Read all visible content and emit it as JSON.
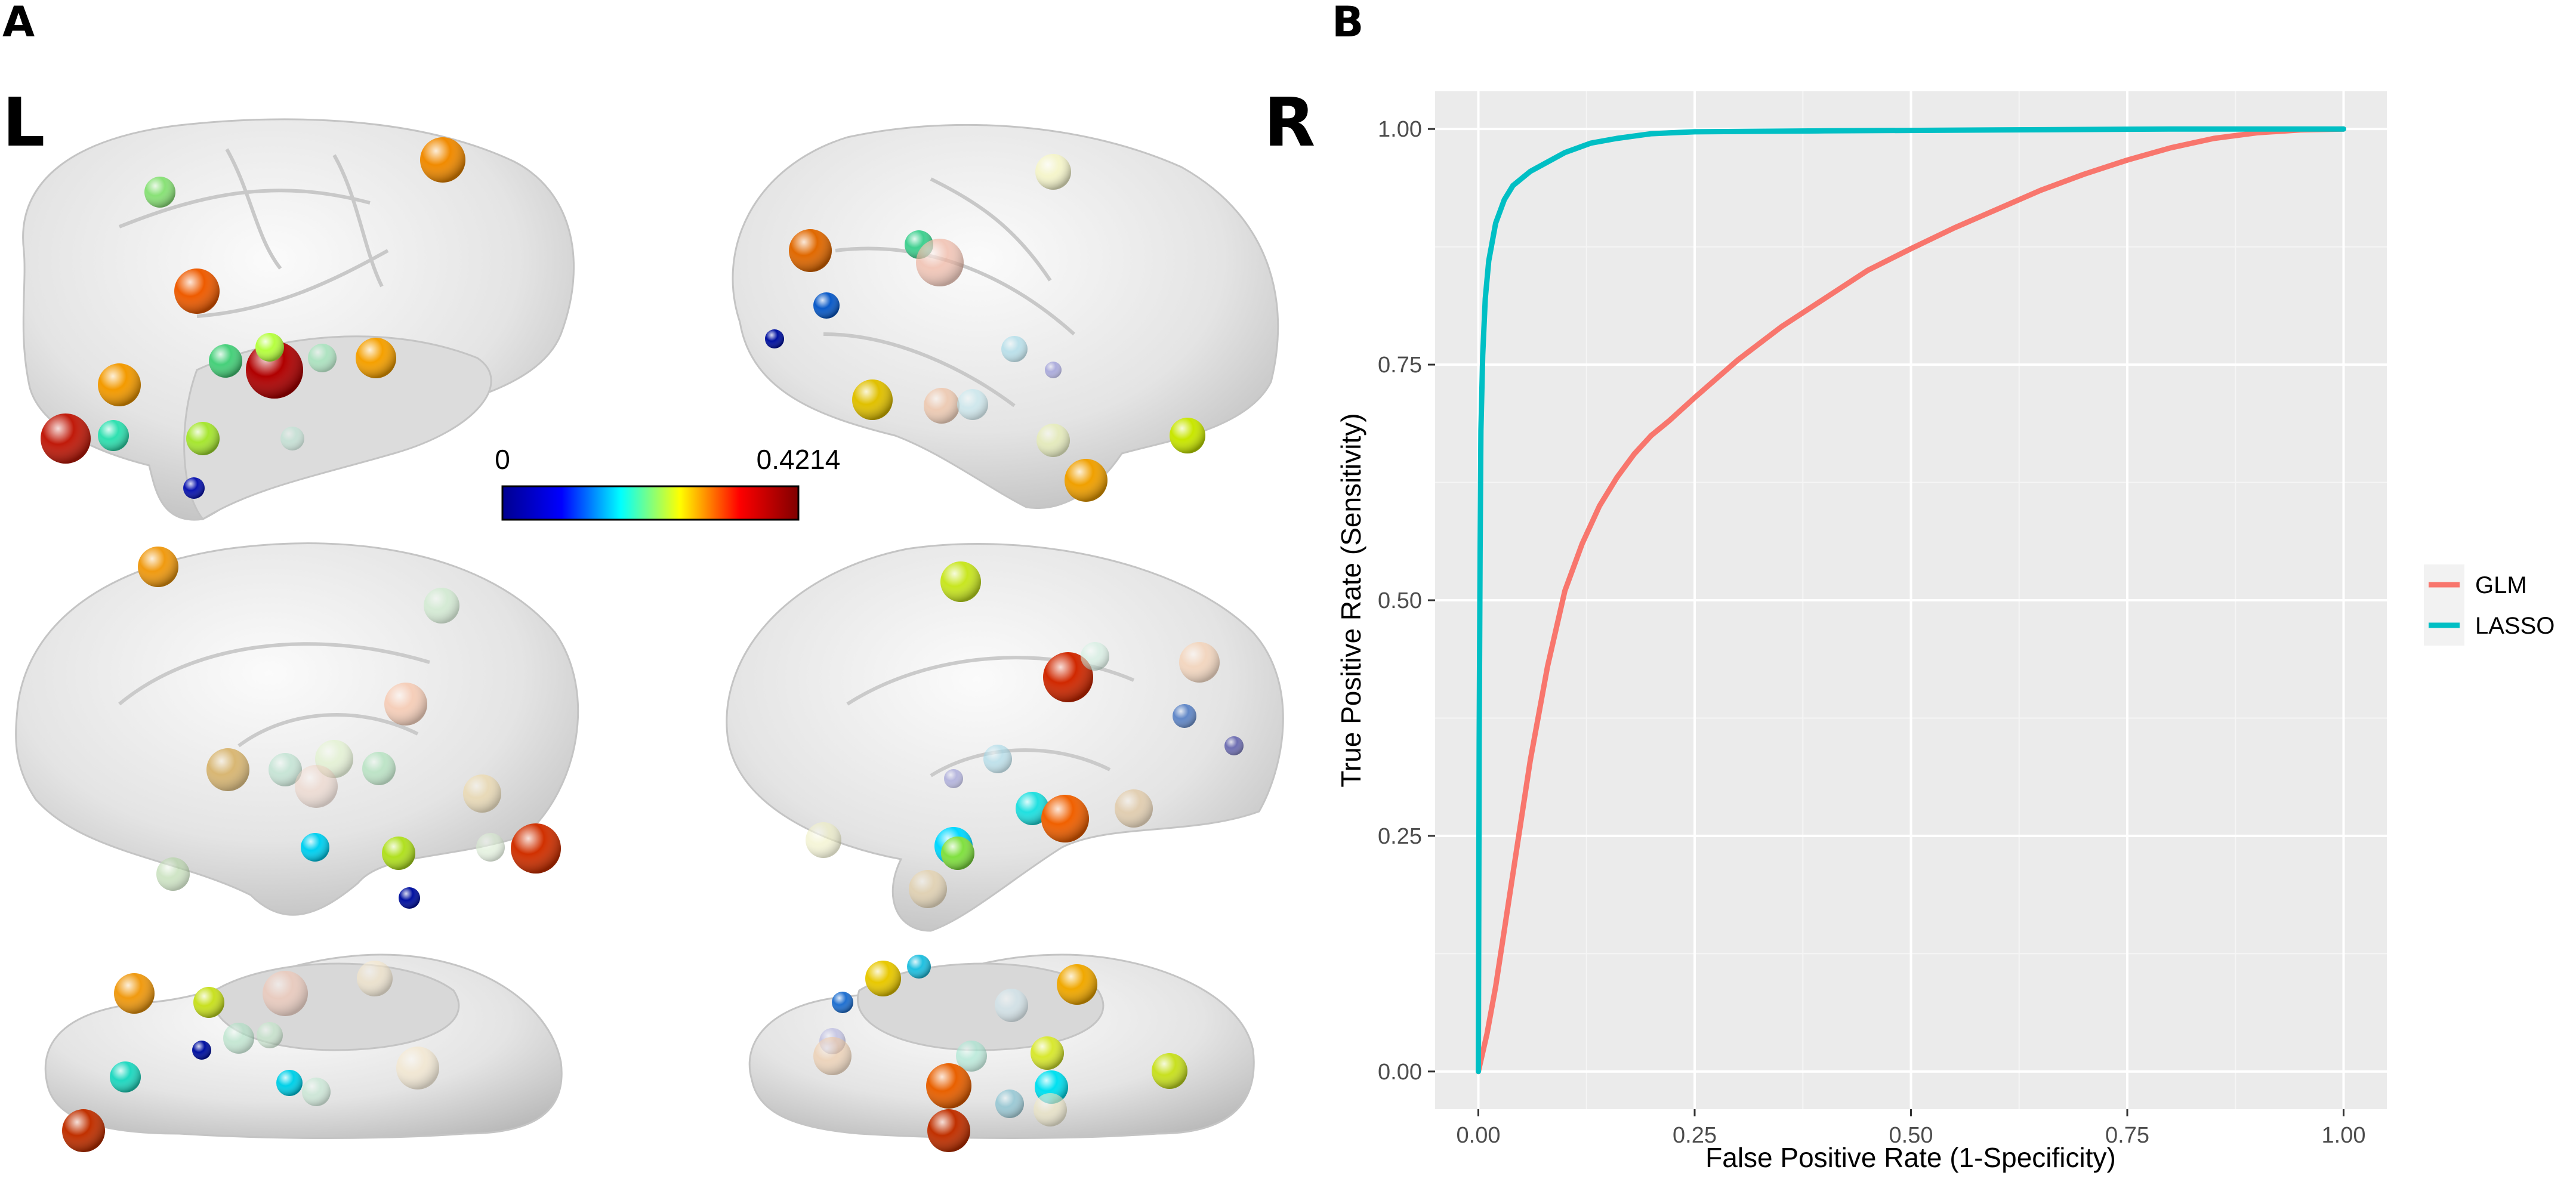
{
  "panels": {
    "a_label": "A",
    "b_label": "B"
  },
  "brain": {
    "left_label": "L",
    "right_label": "R",
    "colorbar": {
      "min_label": "0",
      "max_label": "0.4214",
      "colormap": "jet",
      "stops": [
        "#00008f",
        "#0000ff",
        "#00ffff",
        "#ffff00",
        "#ff0000",
        "#800000"
      ]
    },
    "surface_color": "#e3e3e3"
  },
  "chart_data": {
    "type": "line",
    "title": "",
    "xlabel": "False Positive Rate (1-Specificity)",
    "ylabel": "True Positive Rate (Sensitivity)",
    "xlim": [
      -0.05,
      1.05
    ],
    "ylim": [
      -0.04,
      1.04
    ],
    "x_ticks": [
      "0.00",
      "0.25",
      "0.50",
      "0.75",
      "1.00"
    ],
    "y_ticks": [
      "0.00",
      "0.25",
      "0.50",
      "0.75",
      "1.00"
    ],
    "grid": true,
    "panel_background": "#ebebeb",
    "legend_position": "right",
    "series": [
      {
        "name": "GLM",
        "color": "#f8766d",
        "points": [
          [
            0,
            0
          ],
          [
            0.01,
            0.04
          ],
          [
            0.02,
            0.09
          ],
          [
            0.03,
            0.15
          ],
          [
            0.04,
            0.21
          ],
          [
            0.05,
            0.27
          ],
          [
            0.06,
            0.33
          ],
          [
            0.07,
            0.38
          ],
          [
            0.08,
            0.43
          ],
          [
            0.09,
            0.47
          ],
          [
            0.1,
            0.51
          ],
          [
            0.12,
            0.56
          ],
          [
            0.14,
            0.6
          ],
          [
            0.16,
            0.63
          ],
          [
            0.18,
            0.655
          ],
          [
            0.2,
            0.675
          ],
          [
            0.22,
            0.69
          ],
          [
            0.25,
            0.715
          ],
          [
            0.3,
            0.755
          ],
          [
            0.35,
            0.79
          ],
          [
            0.4,
            0.82
          ],
          [
            0.45,
            0.85
          ],
          [
            0.5,
            0.873
          ],
          [
            0.55,
            0.895
          ],
          [
            0.6,
            0.915
          ],
          [
            0.65,
            0.935
          ],
          [
            0.7,
            0.952
          ],
          [
            0.75,
            0.967
          ],
          [
            0.8,
            0.98
          ],
          [
            0.85,
            0.99
          ],
          [
            0.9,
            0.996
          ],
          [
            0.95,
            0.999
          ],
          [
            1.0,
            1.0
          ]
        ]
      },
      {
        "name": "LASSO",
        "color": "#00bfc4",
        "points": [
          [
            0,
            0
          ],
          [
            0.001,
            0.35
          ],
          [
            0.002,
            0.55
          ],
          [
            0.003,
            0.68
          ],
          [
            0.005,
            0.76
          ],
          [
            0.008,
            0.82
          ],
          [
            0.012,
            0.86
          ],
          [
            0.02,
            0.9
          ],
          [
            0.03,
            0.925
          ],
          [
            0.04,
            0.94
          ],
          [
            0.06,
            0.955
          ],
          [
            0.08,
            0.965
          ],
          [
            0.1,
            0.975
          ],
          [
            0.13,
            0.985
          ],
          [
            0.16,
            0.99
          ],
          [
            0.2,
            0.995
          ],
          [
            0.25,
            0.997
          ],
          [
            0.4,
            0.998
          ],
          [
            0.6,
            0.999
          ],
          [
            0.8,
            1.0
          ],
          [
            1.0,
            1.0
          ]
        ]
      }
    ]
  }
}
